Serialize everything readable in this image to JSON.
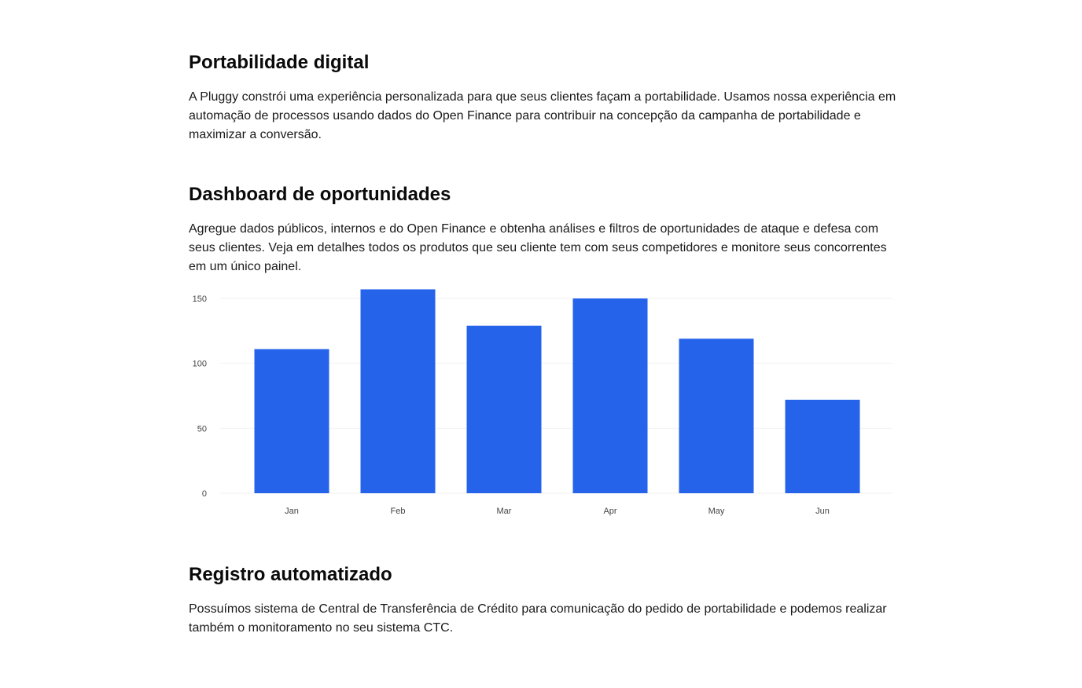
{
  "sections": [
    {
      "title": "Portabilidade digital",
      "text": "A Pluggy constrói uma experiência personalizada para que seus clientes façam a portabilidade. Usamos nossa experiência em automação de processos usando dados do Open Finance para contribuir na concepção da campanha de portabilidade e maximizar a conversão."
    },
    {
      "title": "Dashboard de oportunidades",
      "text": "Agregue dados públicos, internos e do Open Finance e obtenha análises e filtros de oportunidades de ataque e defesa com seus clientes. Veja em detalhes todos os produtos que seu cliente tem com seus competidores e monitore seus concorrentes em um único painel."
    },
    {
      "title": "Registro automatizado",
      "text": "Possuímos sistema de Central de Transferência de Crédito para comunicação do pedido de portabilidade e podemos realizar também o monitoramento no seu sistema CTC."
    }
  ],
  "chart_data": {
    "type": "bar",
    "categories": [
      "Jan",
      "Feb",
      "Mar",
      "Apr",
      "May",
      "Jun"
    ],
    "values": [
      111,
      157,
      129,
      150,
      119,
      72
    ],
    "title": "",
    "xlabel": "",
    "ylabel": "",
    "ylim": [
      0,
      150
    ],
    "yticks": [
      0,
      50,
      100,
      150
    ],
    "grid": true,
    "bar_color": "#2563eb",
    "grid_color": "#f2f2f2"
  }
}
